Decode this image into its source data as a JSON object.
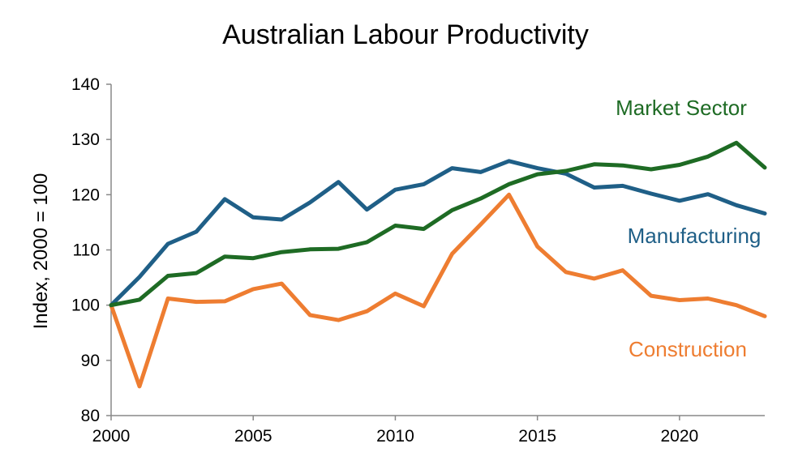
{
  "chart_data": {
    "type": "line",
    "title": "Australian Labour Productivity",
    "xlabel": "",
    "ylabel": "Index, 2000 = 100",
    "xlim": [
      2000,
      2023
    ],
    "ylim": [
      80,
      140
    ],
    "x_ticks": [
      2000,
      2005,
      2010,
      2015,
      2020
    ],
    "y_ticks": [
      80,
      90,
      100,
      110,
      120,
      130,
      140
    ],
    "grid": false,
    "legend": "direct labels beside lines",
    "x": [
      2000,
      2001,
      2002,
      2003,
      2004,
      2005,
      2006,
      2007,
      2008,
      2009,
      2010,
      2011,
      2012,
      2013,
      2014,
      2015,
      2016,
      2017,
      2018,
      2019,
      2020,
      2021,
      2022,
      2023
    ],
    "series": [
      {
        "name": "Market Sector",
        "color": "#1e6b24",
        "values": [
          100,
          101,
          105.3,
          105.8,
          108.8,
          108.5,
          109.6,
          110.1,
          110.2,
          111.4,
          114.4,
          113.8,
          117.2,
          119.3,
          121.9,
          123.7,
          124.3,
          125.5,
          125.3,
          124.6,
          125.4,
          126.9,
          129.4,
          124.9
        ]
      },
      {
        "name": "Manufacturing",
        "color": "#1f5f87",
        "values": [
          100,
          105.1,
          111.1,
          113.3,
          119.2,
          115.9,
          115.5,
          118.6,
          122.3,
          117.3,
          120.9,
          121.9,
          124.8,
          124.1,
          126.1,
          124.8,
          123.8,
          121.3,
          121.6,
          120.2,
          118.9,
          120.1,
          118.1,
          116.6
        ]
      },
      {
        "name": "Construction",
        "color": "#ee7d31",
        "values": [
          100,
          85.3,
          101.2,
          100.6,
          100.7,
          102.9,
          103.9,
          98.2,
          97.3,
          98.9,
          102.1,
          99.8,
          109.3,
          114.6,
          120,
          110.6,
          106,
          104.8,
          106.3,
          101.7,
          100.9,
          101.2,
          100,
          98
        ]
      }
    ]
  }
}
